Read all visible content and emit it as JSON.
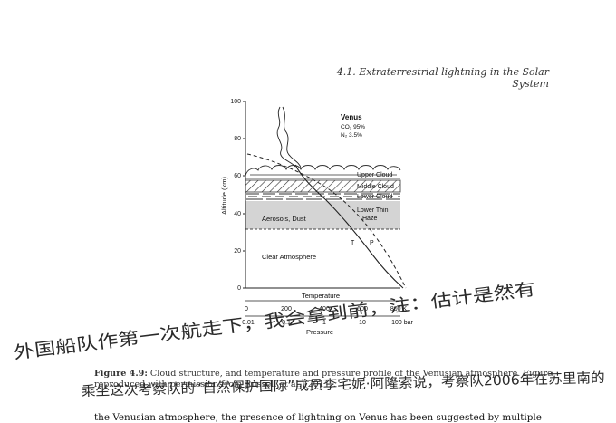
{
  "header": {
    "running_title": "4.1.  Extraterrestrial lightning in the Solar System"
  },
  "figure": {
    "legend": {
      "title": "Venus",
      "co2": "CO₂ 95%",
      "n2": "N₂ 3.5%"
    },
    "layers": {
      "upper": "Upper Cloud",
      "middle": "Middle Cloud",
      "lower": "Lower Cloud",
      "haze_line1": "Lower Thin",
      "haze_line2": "Haze",
      "aerosols": "Aerosols, Dust",
      "clear": "Clear Atmosphere"
    },
    "curve_labels": {
      "t": "T",
      "p": "P"
    },
    "y_axis": {
      "label": "Altitude (km)",
      "ticks": [
        "0",
        "20",
        "40",
        "60",
        "80",
        "100"
      ]
    },
    "temp_axis": {
      "label": "Temperature",
      "ticks": [
        "0",
        "200",
        "400",
        "600",
        "800 K"
      ]
    },
    "pressure_axis": {
      "label": "Pressure",
      "ticks": [
        "0.01",
        "0.1",
        "1",
        "10",
        "100 bar"
      ]
    }
  },
  "caption": {
    "label": "Figure 4.9:",
    "text": " Cloud structure, and temperature and pressure profile of the Venusian atmosphere. Figure reproduced with permission from Russell et al. (2011)."
  },
  "body": {
    "text": "the Venusian atmosphere, the presence of lightning on Venus has been suggested by multiple"
  },
  "annotations": {
    "line1": "外国船队作第一次航走下，我会拿到前，注：估计是然有",
    "line2": "乘坐这次考察队的“自然保护国际”成员李宅妮·阿隆索说，考察队2006年在苏里南的"
  },
  "chart_data": {
    "type": "line",
    "title": "",
    "xlabel": "Temperature",
    "x2label": "Pressure",
    "ylabel": "Altitude (km)",
    "xlim": [
      0,
      800
    ],
    "ylim": [
      0,
      100
    ],
    "series": [
      {
        "name": "T",
        "x": [
          735,
          640,
          530,
          420,
          320,
          250,
          230,
          210,
          175
        ],
        "y": [
          0,
          10,
          20,
          30,
          40,
          50,
          55,
          60,
          65
        ]
      },
      {
        "name": "P",
        "x": [
          92,
          48,
          22,
          9.9,
          3.8,
          1.1,
          0.53,
          0.24,
          0.1
        ],
        "y": [
          0,
          10,
          20,
          30,
          40,
          50,
          55,
          60,
          65
        ]
      }
    ],
    "layers": [
      {
        "name": "Upper Cloud",
        "range_km": [
          57,
          65
        ]
      },
      {
        "name": "Middle Cloud",
        "range_km": [
          52,
          57
        ]
      },
      {
        "name": "Lower Cloud",
        "range_km": [
          48,
          52
        ]
      },
      {
        "name": "Lower Thin Haze",
        "range_km": [
          32,
          46
        ]
      },
      {
        "name": "Aerosols, Dust",
        "range_km": [
          32,
          46
        ]
      },
      {
        "name": "Clear Atmosphere",
        "range_km": [
          0,
          32
        ]
      }
    ]
  }
}
